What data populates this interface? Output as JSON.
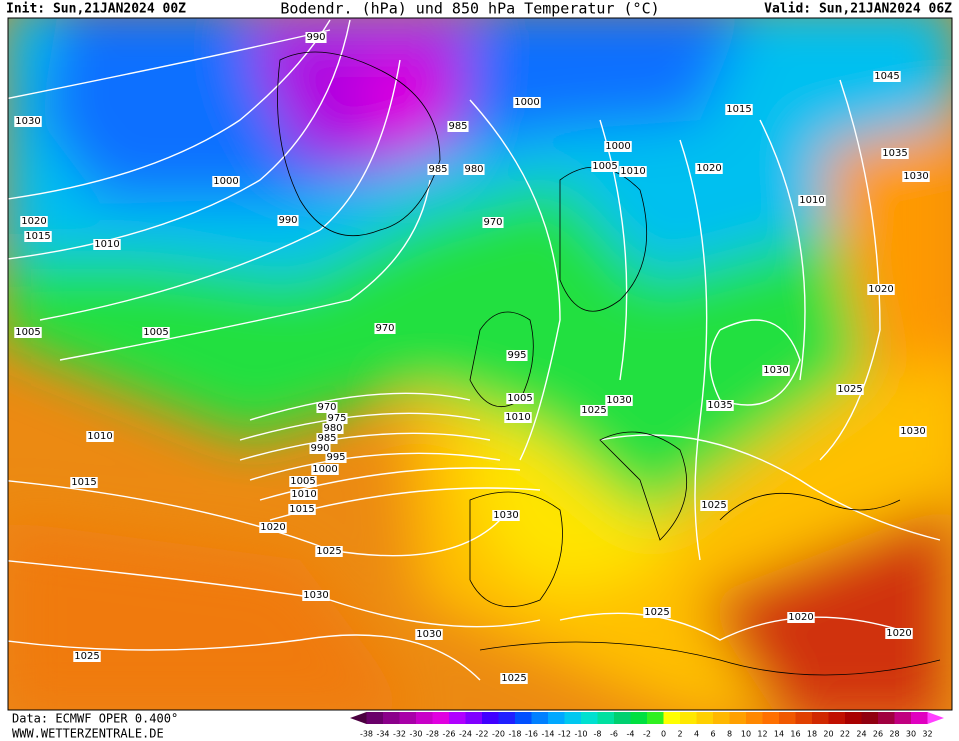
{
  "header": {
    "init": "Init: Sun,21JAN2024 00Z",
    "title": "Bodendr. (hPa) und 850 hPa Temperatur (°C)",
    "valid": "Valid: Sun,21JAN2024 06Z"
  },
  "footer": {
    "source": "Data: ECMWF OPER 0.400°",
    "site": "WWW.WETTERZENTRALE.DE"
  },
  "legend": {
    "labels": [
      -38,
      -34,
      -32,
      -30,
      -28,
      -26,
      -24,
      -22,
      -20,
      -18,
      -16,
      -14,
      -12,
      -10,
      -8,
      -6,
      -4,
      -2,
      0,
      2,
      4,
      6,
      8,
      10,
      12,
      14,
      16,
      18,
      20,
      22,
      24,
      26,
      28,
      30,
      32
    ],
    "colors": [
      "#4b0040",
      "#6a006a",
      "#8a008a",
      "#a800a8",
      "#c800c8",
      "#e000e0",
      "#b000ff",
      "#8000ff",
      "#4000ff",
      "#2020ff",
      "#0050ff",
      "#0080ff",
      "#00a8ff",
      "#00c8f0",
      "#00e0d0",
      "#00e0a0",
      "#00d070",
      "#00e040",
      "#30f020",
      "#ffff00",
      "#ffe800",
      "#ffd000",
      "#ffb800",
      "#ffa000",
      "#ff8800",
      "#ff7000",
      "#f05800",
      "#e04000",
      "#d02800",
      "#c01000",
      "#a80000",
      "#900010",
      "#a00040",
      "#c00080",
      "#e000c0",
      "#ff40ff"
    ]
  },
  "isobar_labels": [
    "990",
    "1030",
    "1000",
    "1000",
    "985",
    "985",
    "980",
    "970",
    "1000",
    "1005",
    "1010",
    "1020",
    "1015",
    "1045",
    "1035",
    "1030",
    "1010",
    "1020",
    "1015",
    "1010",
    "1005",
    "1005",
    "990",
    "970",
    "995",
    "1005",
    "1010",
    "1025",
    "1030",
    "1035",
    "1030",
    "1025",
    "1020",
    "1030",
    "1025",
    "970",
    "975",
    "980",
    "985",
    "990",
    "995",
    "1000",
    "1005",
    "1010",
    "1015",
    "1020",
    "1025",
    "1010",
    "1015",
    "1030",
    "1030",
    "1030",
    "1025",
    "1025",
    "1020",
    "1020",
    "1025"
  ]
}
